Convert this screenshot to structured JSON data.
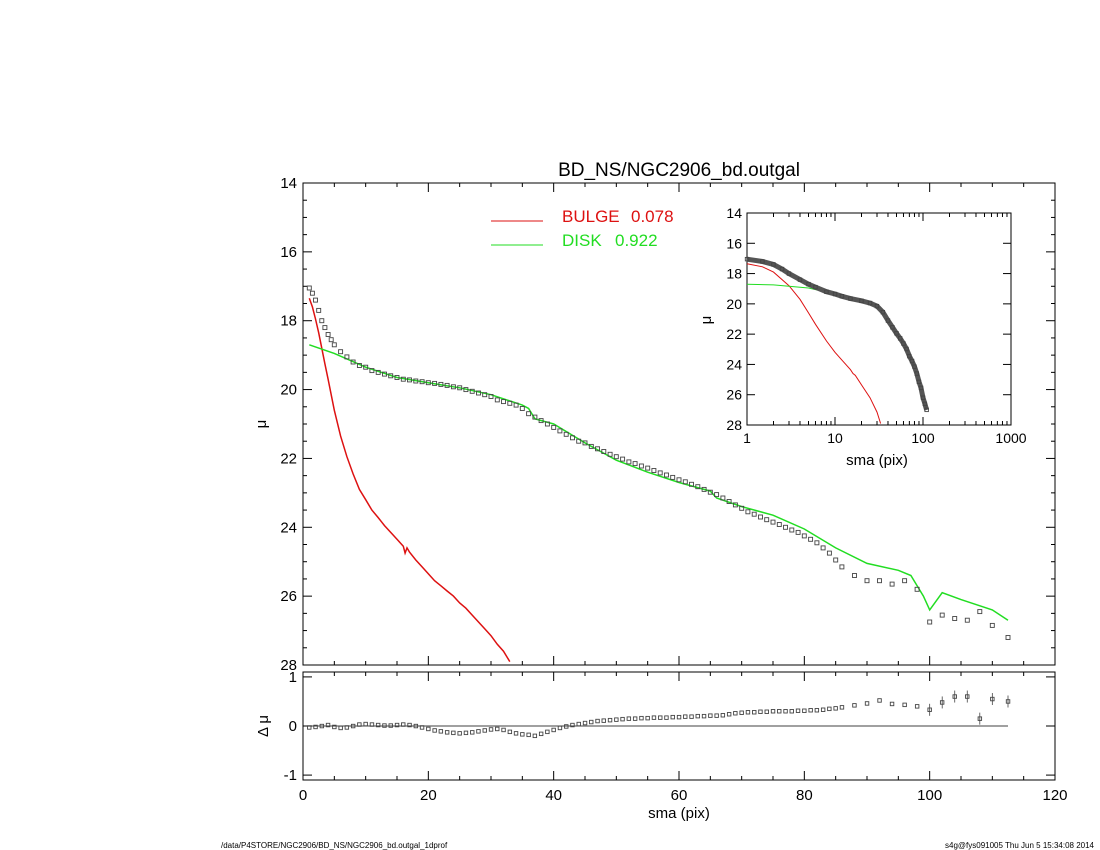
{
  "title": "BD_NS/NGC2906_bd.outgal",
  "footer_left": "/data/P4STORE/NGC2906/BD_NS/NGC2906_bd.outgal_1dprof",
  "footer_right": "s4g@fys091005  Thu Jun  5 15:34:08 2014",
  "colors": {
    "bulge": "#dd1111",
    "disk": "#22dd22",
    "points": "#444444"
  },
  "chart_data": [
    {
      "type": "scatter",
      "panel": "main",
      "xlabel": "",
      "ylabel": "μ",
      "xlim": [
        0,
        120
      ],
      "ylim": [
        28,
        14
      ],
      "y_inverted": true,
      "xticks": [
        "0",
        "20",
        "40",
        "60",
        "80",
        "100",
        "120"
      ],
      "yticks": [
        "14",
        "16",
        "18",
        "20",
        "22",
        "24",
        "26",
        "28"
      ],
      "legend": {
        "placement": "top-center",
        "entries": [
          {
            "label": "BULGE",
            "value": "0.078",
            "color": "#dd1111"
          },
          {
            "label": "DISK",
            "value": "0.922",
            "color": "#22dd22"
          }
        ]
      },
      "series": [
        {
          "name": "data",
          "kind": "points",
          "x": [
            1,
            1.5,
            2,
            2.5,
            3,
            3.5,
            4,
            4.5,
            5,
            6,
            7,
            8,
            9,
            10,
            11,
            12,
            13,
            14,
            15,
            16,
            17,
            18,
            19,
            20,
            21,
            22,
            23,
            24,
            25,
            26,
            27,
            28,
            29,
            30,
            31,
            32,
            33,
            34,
            35,
            36,
            37,
            38,
            39,
            40,
            41,
            42,
            43,
            44,
            45,
            46,
            47,
            48,
            49,
            50,
            51,
            52,
            53,
            54,
            55,
            56,
            57,
            58,
            59,
            60,
            61,
            62,
            63,
            64,
            65,
            66,
            67,
            68,
            69,
            70,
            71,
            72,
            73,
            74,
            75,
            76,
            77,
            78,
            79,
            80,
            81,
            82,
            83,
            84,
            85,
            86,
            88,
            90,
            92,
            94,
            96,
            98,
            100,
            102,
            104,
            106,
            108,
            110,
            112.5
          ],
          "y": [
            17.05,
            17.2,
            17.4,
            17.7,
            18,
            18.2,
            18.4,
            18.55,
            18.7,
            18.9,
            19.05,
            19.2,
            19.3,
            19.35,
            19.45,
            19.5,
            19.55,
            19.6,
            19.65,
            19.7,
            19.72,
            19.75,
            19.77,
            19.8,
            19.82,
            19.85,
            19.88,
            19.92,
            19.95,
            20.0,
            20.05,
            20.1,
            20.15,
            20.2,
            20.3,
            20.35,
            20.4,
            20.45,
            20.55,
            20.7,
            20.8,
            20.9,
            21.0,
            21.1,
            21.2,
            21.3,
            21.4,
            21.5,
            21.55,
            21.65,
            21.72,
            21.8,
            21.88,
            21.95,
            22.02,
            22.1,
            22.15,
            22.22,
            22.28,
            22.35,
            22.42,
            22.48,
            22.55,
            22.62,
            22.68,
            22.75,
            22.82,
            22.9,
            22.98,
            23.05,
            23.15,
            23.25,
            23.35,
            23.45,
            23.55,
            23.62,
            23.7,
            23.78,
            23.85,
            23.92,
            24.0,
            24.08,
            24.15,
            24.25,
            24.35,
            24.45,
            24.6,
            24.75,
            24.95,
            25.15,
            25.4,
            25.55,
            25.55,
            25.65,
            25.55,
            25.8,
            26.75,
            26.55,
            26.65,
            26.7,
            26.45,
            26.85,
            27.2
          ]
        },
        {
          "name": "BULGE",
          "kind": "line",
          "color": "#dd1111",
          "x": [
            1,
            1.5,
            2,
            2.5,
            3,
            3.5,
            4,
            5,
            6,
            7,
            8,
            9,
            10,
            11,
            12,
            13,
            14,
            15,
            16,
            16.3,
            16.6,
            17,
            18,
            19,
            20,
            21,
            22,
            23,
            24,
            25,
            26,
            27,
            28,
            29,
            30,
            31,
            32,
            33
          ],
          "y": [
            17.35,
            17.6,
            17.95,
            18.35,
            18.8,
            19.25,
            19.7,
            20.6,
            21.35,
            21.95,
            22.45,
            22.9,
            23.2,
            23.5,
            23.72,
            23.95,
            24.15,
            24.35,
            24.55,
            24.75,
            24.6,
            24.72,
            24.95,
            25.15,
            25.35,
            25.55,
            25.7,
            25.85,
            26.0,
            26.2,
            26.35,
            26.55,
            26.75,
            26.95,
            27.15,
            27.4,
            27.6,
            27.9
          ]
        },
        {
          "name": "DISK",
          "kind": "line",
          "color": "#22dd22",
          "x": [
            1,
            5,
            10,
            15,
            20,
            25,
            30,
            35,
            36,
            37,
            40,
            45,
            50,
            55,
            60,
            65,
            66,
            70,
            75,
            80,
            85,
            90,
            95,
            97,
            98,
            99,
            100,
            102,
            105,
            110,
            112.5
          ],
          "y": [
            18.7,
            18.95,
            19.35,
            19.65,
            19.8,
            19.95,
            20.15,
            20.45,
            20.55,
            20.85,
            21.0,
            21.55,
            22.05,
            22.4,
            22.7,
            22.95,
            23.15,
            23.4,
            23.65,
            24.05,
            24.6,
            25.05,
            25.25,
            25.4,
            25.7,
            26.0,
            26.4,
            25.9,
            26.1,
            26.4,
            26.7
          ]
        }
      ]
    },
    {
      "type": "scatter",
      "panel": "residual",
      "xlabel": "sma (pix)",
      "ylabel": "Δ μ",
      "xlim": [
        0,
        120
      ],
      "ylim": [
        -1.1,
        1.1
      ],
      "xticks": [
        "0",
        "20",
        "40",
        "60",
        "80",
        "100",
        "120"
      ],
      "yticks": [
        "1",
        "0",
        "-1"
      ],
      "series": [
        {
          "name": "residual",
          "kind": "points",
          "x": [
            1,
            2,
            3,
            4,
            5,
            6,
            7,
            8,
            9,
            10,
            11,
            12,
            13,
            14,
            15,
            16,
            17,
            18,
            19,
            20,
            21,
            22,
            23,
            24,
            25,
            26,
            27,
            28,
            29,
            30,
            31,
            32,
            33,
            34,
            35,
            36,
            37,
            38,
            39,
            40,
            41,
            42,
            43,
            44,
            45,
            46,
            47,
            48,
            49,
            50,
            51,
            52,
            53,
            54,
            55,
            56,
            57,
            58,
            59,
            60,
            61,
            62,
            63,
            64,
            65,
            66,
            67,
            68,
            69,
            70,
            71,
            72,
            73,
            74,
            75,
            76,
            77,
            78,
            79,
            80,
            81,
            82,
            83,
            84,
            85,
            86,
            88,
            90,
            92,
            94,
            96,
            98,
            100,
            102,
            104,
            106,
            108,
            110,
            112.5
          ],
          "y": [
            -0.03,
            -0.02,
            0.0,
            0.02,
            -0.02,
            -0.04,
            -0.03,
            0.0,
            0.03,
            0.04,
            0.03,
            0.02,
            0.01,
            0.01,
            0.02,
            0.03,
            0.02,
            0.0,
            -0.03,
            -0.06,
            -0.09,
            -0.11,
            -0.13,
            -0.14,
            -0.15,
            -0.14,
            -0.13,
            -0.11,
            -0.09,
            -0.07,
            -0.06,
            -0.08,
            -0.12,
            -0.15,
            -0.17,
            -0.18,
            -0.2,
            -0.16,
            -0.12,
            -0.08,
            -0.04,
            -0.01,
            0.02,
            0.04,
            0.06,
            0.08,
            0.1,
            0.11,
            0.12,
            0.13,
            0.14,
            0.15,
            0.15,
            0.16,
            0.16,
            0.17,
            0.17,
            0.17,
            0.18,
            0.18,
            0.19,
            0.19,
            0.2,
            0.2,
            0.21,
            0.21,
            0.22,
            0.24,
            0.26,
            0.27,
            0.28,
            0.28,
            0.29,
            0.29,
            0.3,
            0.3,
            0.3,
            0.3,
            0.31,
            0.31,
            0.32,
            0.32,
            0.33,
            0.35,
            0.36,
            0.38,
            0.42,
            0.46,
            0.52,
            0.45,
            0.43,
            0.4,
            0.33,
            0.48,
            0.6,
            0.6,
            0.15,
            0.55,
            0.5
          ]
        },
        {
          "name": "zero",
          "kind": "line",
          "color": "#000000",
          "x": [
            1,
            112.5
          ],
          "y": [
            0,
            0
          ]
        }
      ]
    },
    {
      "type": "scatter",
      "panel": "inset",
      "xlabel": "sma (pix)",
      "ylabel": "μ",
      "x_scale": "log",
      "xlim": [
        1,
        1000
      ],
      "ylim": [
        28,
        14
      ],
      "y_inverted": true,
      "xticks": [
        "1",
        "10",
        "100",
        "1000"
      ],
      "yticks": [
        "14",
        "16",
        "18",
        "20",
        "22",
        "24",
        "26",
        "28"
      ],
      "series": [
        {
          "name": "data",
          "kind": "points",
          "x": [
            1,
            1.5,
            2,
            2.5,
            3,
            4,
            5,
            6,
            8,
            10,
            12,
            15,
            20,
            25,
            30,
            35,
            40,
            45,
            50,
            55,
            60,
            65,
            70,
            75,
            80,
            85,
            90,
            95,
            100,
            105,
            110
          ],
          "y": [
            17.05,
            17.2,
            17.4,
            17.7,
            18,
            18.4,
            18.7,
            18.9,
            19.2,
            19.35,
            19.5,
            19.65,
            19.8,
            19.95,
            20.15,
            20.55,
            21.1,
            21.55,
            21.95,
            22.28,
            22.62,
            22.98,
            23.45,
            23.78,
            24.15,
            24.6,
            25.15,
            25.55,
            26.2,
            26.6,
            27.0
          ]
        },
        {
          "name": "BULGE",
          "kind": "line",
          "color": "#dd1111",
          "x": [
            1,
            1.5,
            2,
            3,
            4,
            5,
            6,
            8,
            10,
            12,
            15,
            16,
            17,
            20,
            25,
            30,
            33
          ],
          "y": [
            17.35,
            17.55,
            17.9,
            18.8,
            19.7,
            20.6,
            21.35,
            22.45,
            23.2,
            23.72,
            24.35,
            24.6,
            24.72,
            25.35,
            26.2,
            27.15,
            27.9
          ]
        },
        {
          "name": "DISK",
          "kind": "line",
          "color": "#22dd22",
          "x": [
            1,
            2,
            5,
            10,
            15,
            20
          ],
          "y": [
            18.7,
            18.75,
            18.95,
            19.35,
            19.65,
            19.8
          ]
        }
      ]
    }
  ]
}
